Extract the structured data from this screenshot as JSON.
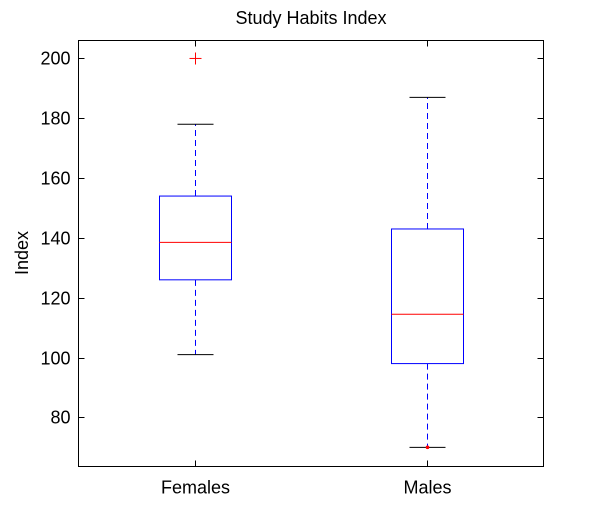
{
  "chart_data": {
    "type": "box",
    "title": "Study Habits Index",
    "xlabel": "",
    "ylabel": "Index",
    "ylim": [
      63.6,
      206
    ],
    "yticks": [
      80,
      100,
      120,
      140,
      160,
      180,
      200
    ],
    "grid": false,
    "categories": [
      "Females",
      "Males"
    ],
    "boxes": [
      {
        "name": "Females",
        "whisker_low": 101,
        "q1": 126,
        "median": 138.5,
        "q3": 154,
        "whisker_high": 178,
        "outliers": [
          200
        ]
      },
      {
        "name": "Males",
        "whisker_low": 70,
        "q1": 98,
        "median": 114.5,
        "q3": 143,
        "whisker_high": 187,
        "outliers": [
          70
        ]
      }
    ],
    "colors": {
      "box": "#0000ff",
      "median": "#ff0000",
      "outlier": "#ff0000",
      "whisker_cap": "#000000"
    }
  }
}
